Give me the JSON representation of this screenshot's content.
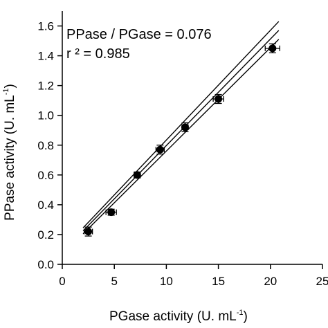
{
  "chart_data": {
    "type": "scatter",
    "xlabel": "PGase activity (U. mL",
    "xlabel_sup": "-1",
    "xlabel_suffix": ")",
    "ylabel": "PPase activity (U. mL",
    "ylabel_sup": "-1",
    "ylabel_suffix": ")",
    "xlim": [
      0,
      25
    ],
    "ylim": [
      0,
      1.7
    ],
    "xticks": [
      0,
      5,
      10,
      15,
      20,
      25
    ],
    "xtick_labels": [
      "0",
      "5",
      "10",
      "15",
      "20",
      "25"
    ],
    "yticks": [
      0.0,
      0.2,
      0.4,
      0.6,
      0.8,
      1.0,
      1.2,
      1.4,
      1.6
    ],
    "ytick_labels": [
      "0.0",
      "0.2",
      "0.4",
      "0.6",
      "0.8",
      "1.0",
      "1.2",
      "1.4",
      "1.6"
    ],
    "grid": false,
    "points": {
      "x": [
        2.5,
        4.7,
        7.2,
        9.4,
        11.8,
        15.0,
        20.2
      ],
      "y": [
        0.22,
        0.35,
        0.6,
        0.77,
        0.92,
        1.11,
        1.45
      ],
      "xerr": [
        0.4,
        0.5,
        0.3,
        0.4,
        0.3,
        0.5,
        0.7
      ],
      "yerr": [
        0.03,
        0.02,
        0.02,
        0.03,
        0.03,
        0.03,
        0.03
      ]
    },
    "fit_lines": [
      {
        "x": [
          2.0,
          20.8
        ],
        "y": [
          0.245,
          1.63
        ]
      },
      {
        "x": [
          2.0,
          20.8
        ],
        "y": [
          0.225,
          1.57
        ]
      },
      {
        "x": [
          2.0,
          20.8
        ],
        "y": [
          0.205,
          1.51
        ]
      }
    ],
    "annotations": [
      "PPase / PGase = 0.076",
      "r ² = 0.985"
    ]
  }
}
